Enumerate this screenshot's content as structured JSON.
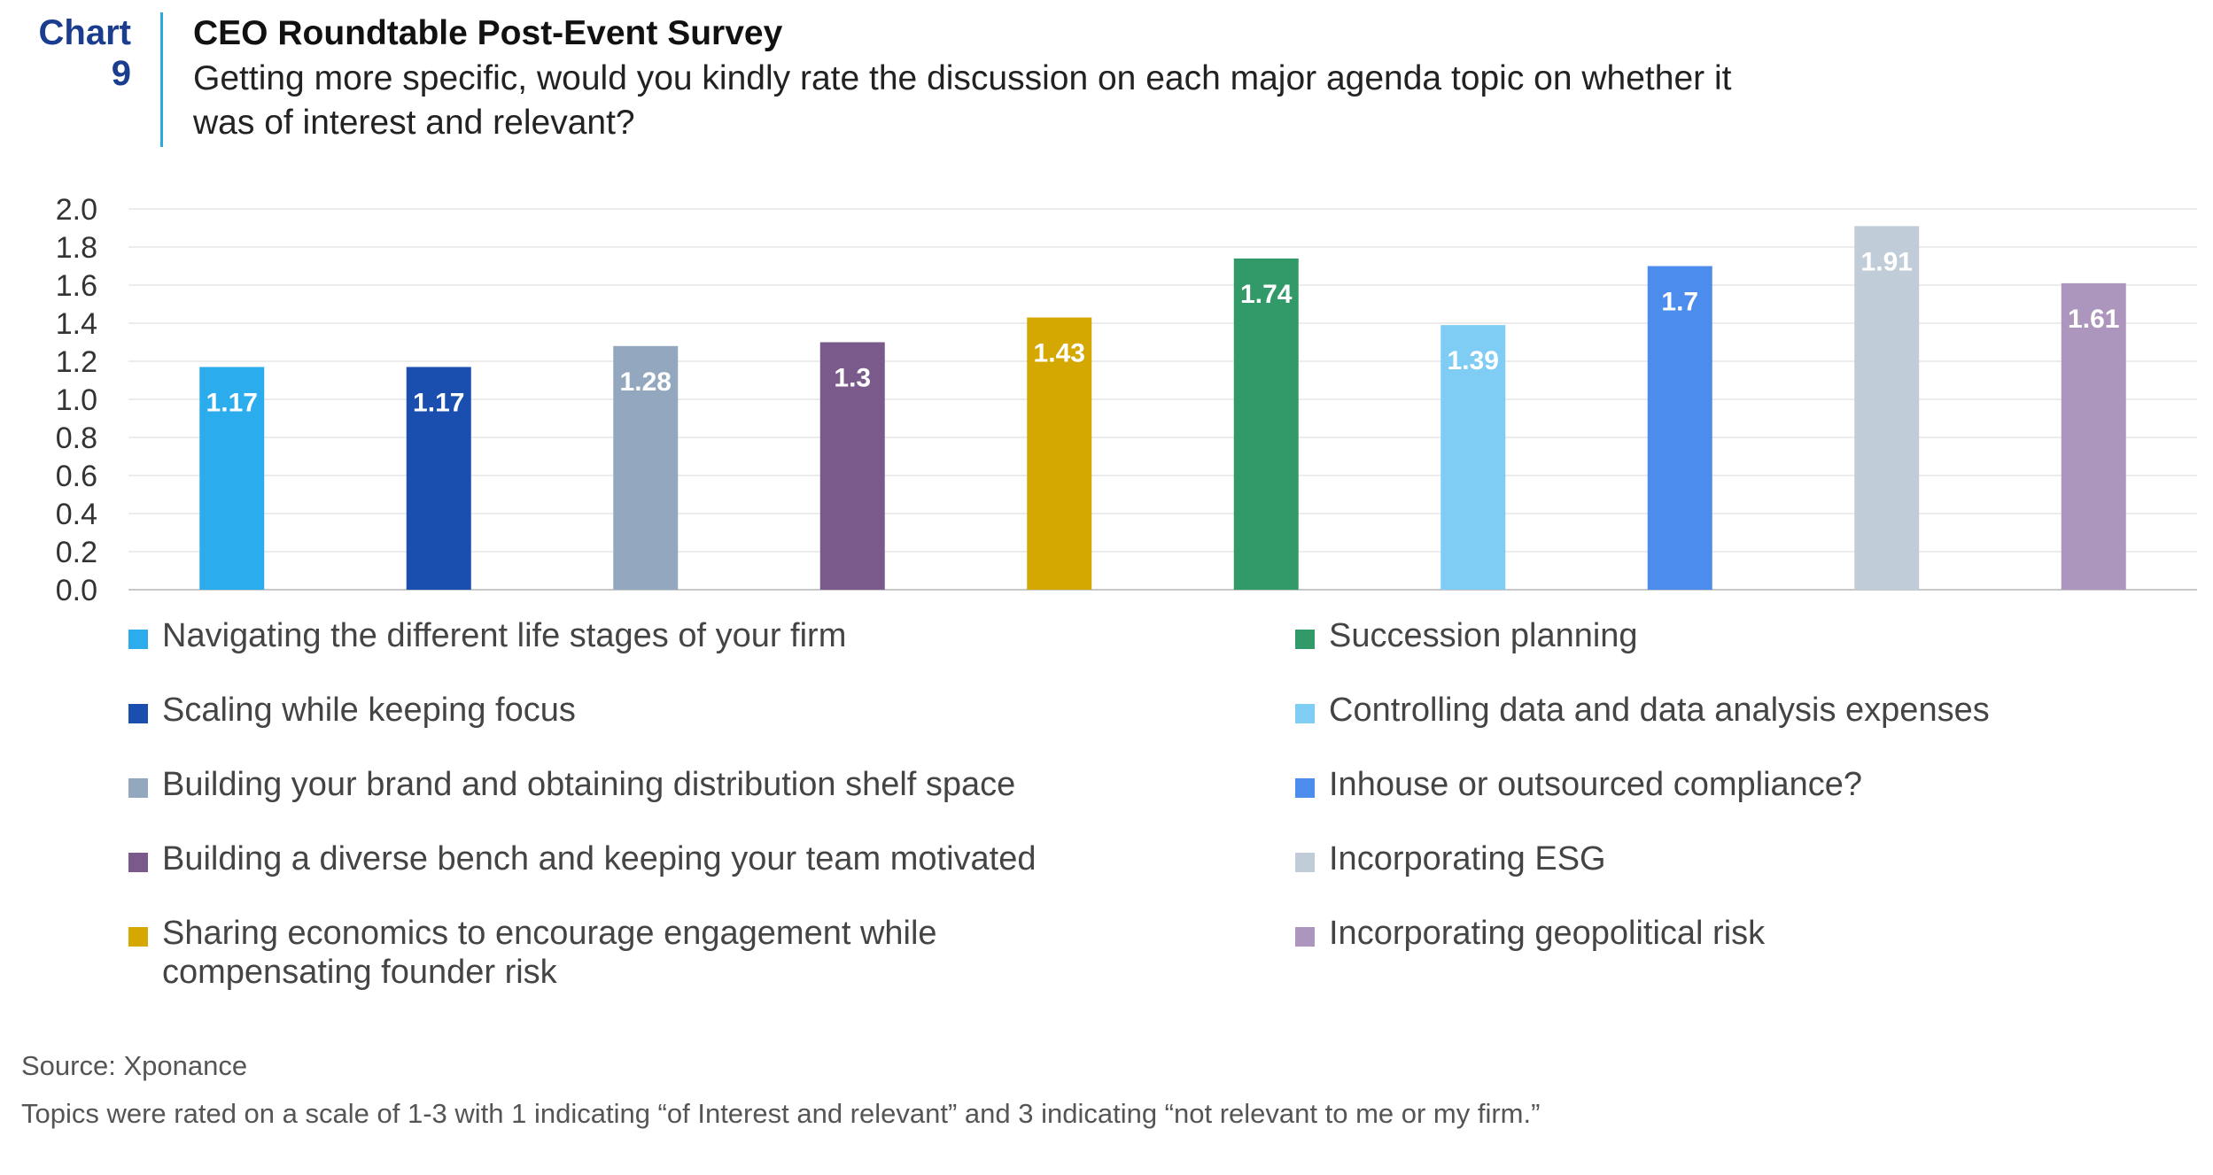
{
  "header": {
    "chart_word": "Chart",
    "chart_number": "9",
    "title": "CEO Roundtable Post-Event Survey",
    "subtitle": "Getting more specific, would you kindly rate the discussion on each major agenda topic on whether it was of interest and relevant?"
  },
  "chart_data": {
    "type": "bar",
    "categories": [
      "Navigating the different life stages of your firm",
      "Scaling while keeping focus",
      "Building your brand and obtaining distribution shelf space",
      "Building a diverse bench and keeping your team motivated",
      "Sharing economics to encourage engagement while compensating founder risk",
      "Succession planning",
      "Controlling data and data analysis expenses",
      "Inhouse or outsourced compliance?",
      "Incorporating ESG",
      "Incorporating geopolitical risk"
    ],
    "values": [
      1.17,
      1.17,
      1.28,
      1.3,
      1.43,
      1.74,
      1.39,
      1.7,
      1.91,
      1.61
    ],
    "value_labels": [
      "1.17",
      "1.17",
      "1.28",
      "1.3",
      "1.43",
      "1.74",
      "1.39",
      "1.7",
      "1.91",
      "1.61"
    ],
    "colors": [
      "#2bacec",
      "#1a4eaf",
      "#93a8bf",
      "#7a5a8a",
      "#d4a800",
      "#329a68",
      "#7fcdf5",
      "#4c8cec",
      "#c1ccd9",
      "#ad96be"
    ],
    "ylim": [
      0,
      2.0
    ],
    "yticks": [
      "0.0",
      "0.2",
      "0.4",
      "0.6",
      "0.8",
      "1.0",
      "1.2",
      "1.4",
      "1.6",
      "1.8",
      "2.0"
    ],
    "grid": true,
    "legend_position": "bottom",
    "title": "",
    "xlabel": "",
    "ylabel": ""
  },
  "footer": {
    "source": "Source: Xponance",
    "note": "Topics were rated on a scale of 1-3 with 1 indicating “of Interest and relevant” and 3 indicating “not relevant to me or my firm.”"
  }
}
